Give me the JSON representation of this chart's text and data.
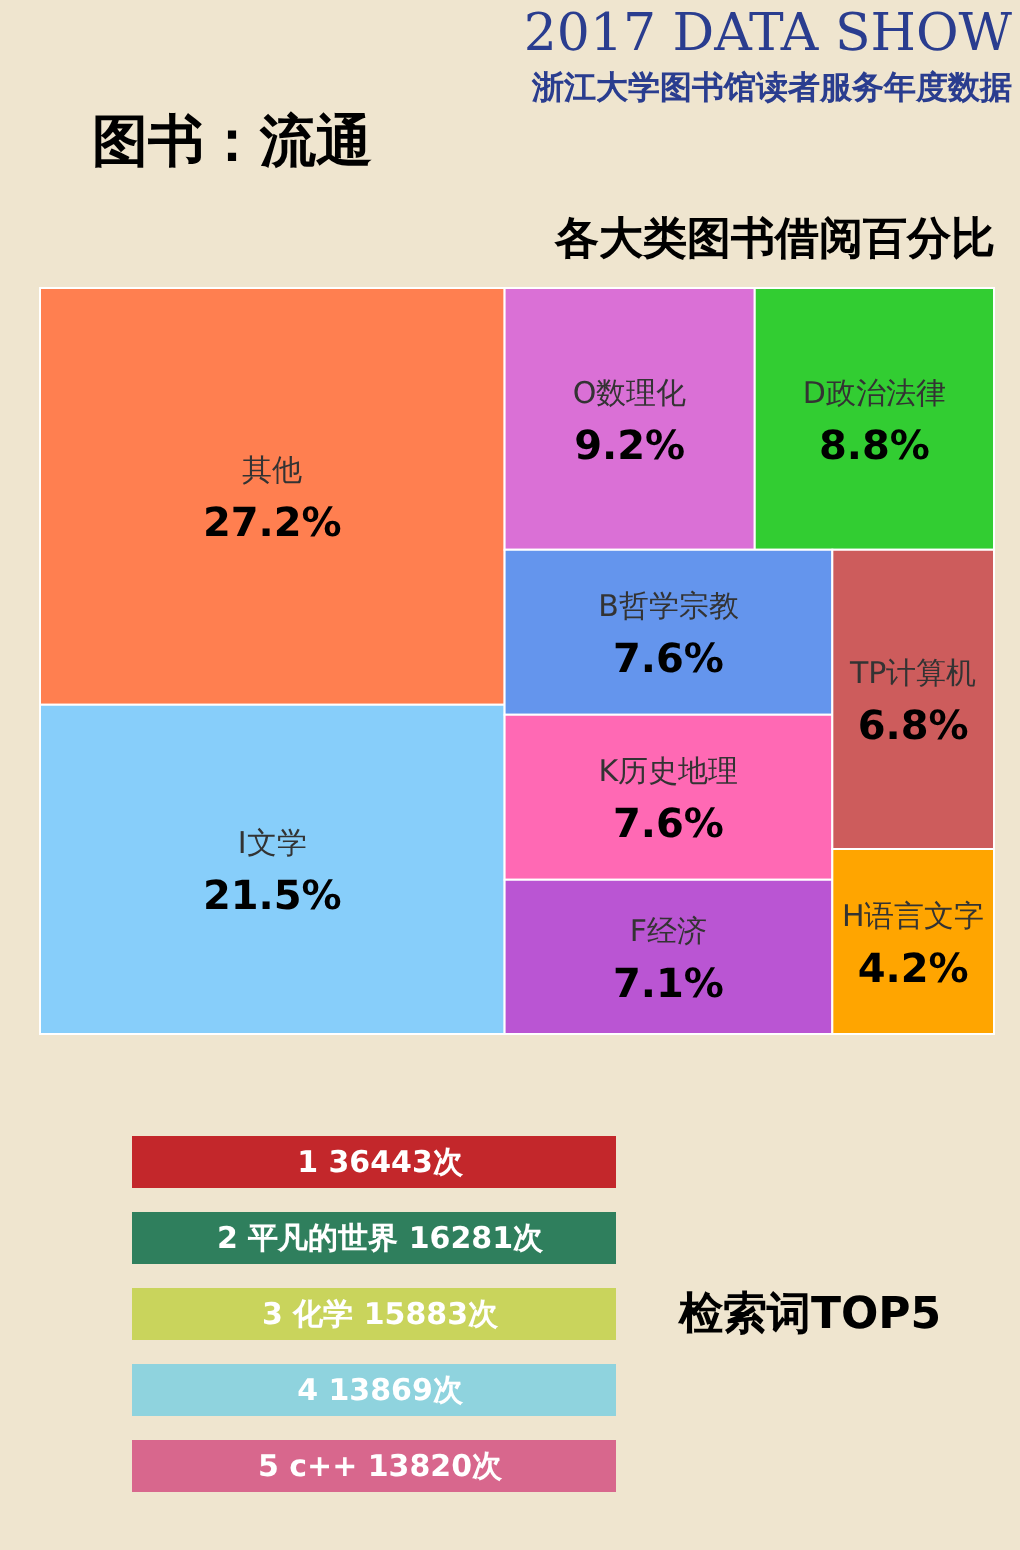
{
  "chart_data": [
    {
      "type": "other",
      "title": "各大类图书借阅百分比",
      "annotations": [
        "2017 DATA SHOW",
        "浙江大学图书馆读者服务年度数据",
        "图书：流通"
      ],
      "categories": [
        "其他",
        "I文学",
        "O数理化",
        "D政治法律",
        "B哲学宗教",
        "K历史地理",
        "F经济",
        "TP计算机",
        "H语言文字"
      ],
      "values": [
        27.2,
        21.5,
        9.2,
        8.8,
        7.6,
        7.6,
        7.1,
        6.8,
        4.2
      ],
      "value_labels": [
        "27.2%",
        "21.5%",
        "9.2%",
        "8.8%",
        "7.6%",
        "7.6%",
        "7.1%",
        "6.8%",
        "4.2%"
      ],
      "colors": [
        "#ff7f50",
        "#87cefa",
        "#da70d6",
        "#32cd32",
        "#6495ed",
        "#ff69b4",
        "#ba55d3",
        "#cd5c5c",
        "#ffa500"
      ]
    },
    {
      "type": "other",
      "title": "检索词TOP5",
      "categories": [
        null,
        "平凡的世界",
        "化学",
        null,
        "c++"
      ],
      "value_labels": [
        "36443次",
        "16281次",
        "15883次",
        "13869次",
        "13820次"
      ],
      "annotations": [
        "1",
        "2",
        "3",
        "4",
        "5"
      ],
      "colors": [
        "#c3272b",
        "#2f7f5d",
        "#c9d45c",
        "#8fd3de",
        "#d8678d"
      ]
    }
  ]
}
